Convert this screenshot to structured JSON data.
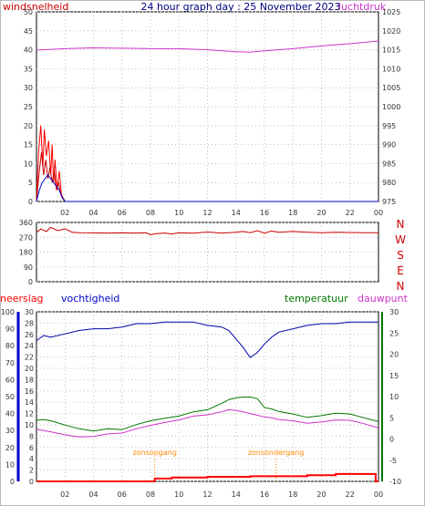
{
  "colors": {
    "wind": "#cc0000",
    "gust": "#ff0000",
    "wind_avg": "#0000cc",
    "pressure": "#cc33cc",
    "direction": "#cc0000",
    "humidity": "#0000aa",
    "temperature": "#007700",
    "dewpoint": "#cc33cc",
    "rain": "#ff0000",
    "sun_marker": "#ff8800",
    "grid": "#bfbfbf",
    "axis_blue": "#0000cc",
    "axis_green": "#007700"
  },
  "chart_data": [
    {
      "type": "line",
      "title": "24 hour graph day : 25 November 2023",
      "left_axis_label": "windsnelheid",
      "right_axis_label": "luchtdruk",
      "x_ticks": [
        "02",
        "04",
        "06",
        "08",
        "10",
        "12",
        "14",
        "16",
        "18",
        "20",
        "22",
        "00"
      ],
      "left_ticks": [
        "50",
        "45",
        "40",
        "35",
        "30",
        "25",
        "20",
        "15",
        "10",
        "5",
        "0"
      ],
      "right_ticks": [
        "1025",
        "1020",
        "1015",
        "1010",
        "1005",
        "1000",
        "995",
        "990",
        "985",
        "980",
        "975"
      ],
      "xlim": [
        0,
        24
      ],
      "left_ylim": [
        0,
        50
      ],
      "right_ylim": [
        975,
        1025
      ],
      "series": [
        {
          "key": "gust",
          "axis": "left",
          "x": [
            0,
            0.15,
            0.3,
            0.45,
            0.55,
            0.7,
            0.85,
            1.0,
            1.1,
            1.2,
            1.3,
            1.45,
            1.6,
            1.75,
            1.85,
            2.0,
            24
          ],
          "y": [
            0,
            13,
            20,
            9,
            19,
            12,
            16,
            7,
            15,
            5,
            11,
            3,
            8,
            2,
            1,
            0,
            0
          ]
        },
        {
          "key": "wind",
          "axis": "left",
          "x": [
            0,
            0.2,
            0.35,
            0.5,
            0.65,
            0.8,
            0.95,
            1.1,
            1.25,
            1.4,
            1.55,
            1.7,
            1.85,
            2.0,
            24
          ],
          "y": [
            0,
            8,
            13,
            7,
            11,
            6,
            9,
            5,
            8,
            3,
            5,
            2,
            1,
            0,
            0
          ]
        },
        {
          "key": "wind_avg",
          "axis": "left",
          "x": [
            0,
            0.2,
            0.4,
            0.6,
            0.8,
            1.0,
            1.2,
            1.4,
            1.6,
            1.8,
            2.0,
            24
          ],
          "y": [
            0,
            3,
            5,
            6,
            7,
            6,
            5,
            4,
            3,
            1,
            0,
            0
          ]
        },
        {
          "key": "pressure",
          "axis": "right",
          "x": [
            0,
            2,
            4,
            6,
            8,
            10,
            12,
            14,
            15,
            16,
            18,
            20,
            22,
            24
          ],
          "y": [
            1014.9,
            1015.3,
            1015.5,
            1015.4,
            1015.3,
            1015.3,
            1015.0,
            1014.5,
            1014.4,
            1014.7,
            1015.3,
            1016.0,
            1016.6,
            1017.3
          ]
        }
      ]
    },
    {
      "type": "line",
      "right_axis_label": [
        "N",
        "W",
        "S",
        "E",
        "N"
      ],
      "y_ticks": [
        "360",
        "270",
        "180",
        "90",
        "0"
      ],
      "xlim": [
        0,
        24
      ],
      "ylim": [
        0,
        360
      ],
      "series": [
        {
          "key": "direction",
          "x": [
            0,
            0.3,
            0.7,
            1.0,
            1.5,
            2.0,
            2.5,
            3,
            4,
            5,
            6,
            7,
            7.7,
            8,
            8.4,
            9,
            9.5,
            10,
            11,
            12,
            13,
            14,
            14.5,
            15,
            15.5,
            16,
            16.5,
            17,
            18,
            19,
            20,
            21,
            22,
            23,
            24
          ],
          "y": [
            300,
            320,
            305,
            330,
            310,
            322,
            300,
            298,
            297,
            296,
            297,
            296,
            297,
            285,
            292,
            296,
            290,
            298,
            295,
            302,
            296,
            300,
            305,
            298,
            310,
            295,
            308,
            300,
            305,
            300,
            298,
            300,
            299,
            298,
            298
          ]
        }
      ]
    },
    {
      "type": "line",
      "axis_labels": [
        "neerslag",
        "vochtigheid",
        "temperatuur",
        "dauwpunt"
      ],
      "x_ticks": [
        "02",
        "04",
        "06",
        "08",
        "10",
        "12",
        "14",
        "16",
        "18",
        "20",
        "22",
        "00"
      ],
      "rain_ticks": [
        "0",
        "2",
        "4",
        "6",
        "8",
        "10",
        "12",
        "14",
        "16",
        "18",
        "20",
        "22",
        "24",
        "26",
        "28",
        "30"
      ],
      "humidity_ticks": [
        "0",
        "10",
        "20",
        "30",
        "40",
        "50",
        "60",
        "70",
        "80",
        "90",
        "100"
      ],
      "temperature_ticks": [
        "-10",
        "-5",
        "0",
        "5",
        "10",
        "15",
        "20",
        "25",
        "30"
      ],
      "annotations": [
        "zonsopgang",
        "zonsondergang"
      ],
      "sunrise_hour": 8.3,
      "sunset_hour": 16.8,
      "xlim": [
        0,
        24
      ],
      "rain_ylim": [
        0,
        30
      ],
      "humidity_ylim": [
        0,
        100
      ],
      "temperature_ylim": [
        -10,
        30
      ],
      "series": [
        {
          "key": "humidity",
          "axis": "humidity",
          "x": [
            0,
            0.5,
            1,
            2,
            3,
            4,
            5,
            6,
            7,
            8,
            9,
            10,
            11,
            12,
            13,
            13.5,
            14,
            14.5,
            15,
            15.5,
            16,
            16.5,
            17,
            18,
            19,
            20,
            21,
            22,
            23,
            24
          ],
          "y": [
            83,
            86,
            85,
            87,
            89,
            90,
            90,
            91,
            93,
            93,
            94,
            94,
            94,
            92,
            91,
            89,
            84,
            79,
            73,
            76,
            81,
            85,
            88,
            90,
            92,
            93,
            93,
            94,
            94,
            94
          ]
        },
        {
          "key": "temperature",
          "axis": "temperature",
          "x": [
            0,
            0.5,
            1,
            2,
            3,
            4,
            5,
            6,
            7,
            8,
            9,
            10,
            11,
            12,
            13,
            13.5,
            14,
            14.5,
            15,
            15.5,
            16,
            16.5,
            17,
            18,
            19,
            20,
            21,
            22,
            23,
            24
          ],
          "y": [
            4.4,
            4.6,
            4.3,
            3.3,
            2.4,
            1.9,
            2.4,
            2.2,
            3.4,
            4.3,
            4.9,
            5.4,
            6.4,
            6.9,
            8.4,
            9.3,
            9.7,
            9.9,
            9.9,
            9.5,
            7.4,
            7.1,
            6.5,
            5.9,
            5.1,
            5.5,
            6.1,
            5.9,
            5.0,
            4.1
          ]
        },
        {
          "key": "dewpoint",
          "axis": "temperature",
          "x": [
            0,
            0.5,
            1,
            2,
            3,
            4,
            5,
            6,
            7,
            8,
            9,
            10,
            11,
            12,
            13,
            13.5,
            14,
            14.5,
            15,
            15.5,
            16,
            16.5,
            17,
            18,
            19,
            20,
            21,
            22,
            23,
            24
          ],
          "y": [
            2.3,
            2.0,
            1.7,
            1.0,
            0.5,
            0.6,
            1.2,
            1.4,
            2.4,
            3.2,
            3.9,
            4.5,
            5.4,
            5.7,
            6.4,
            6.9,
            6.7,
            6.4,
            6.0,
            5.6,
            5.2,
            5.0,
            4.6,
            4.3,
            3.7,
            4.0,
            4.5,
            4.4,
            3.6,
            2.6
          ]
        },
        {
          "key": "rain",
          "axis": "rain",
          "x": [
            0,
            8.3,
            8.3,
            9.5,
            9.5,
            12,
            12,
            15,
            15,
            19,
            19,
            21,
            21,
            23.8,
            23.8,
            24
          ],
          "y": [
            0,
            0,
            0.5,
            0.5,
            0.7,
            0.7,
            0.8,
            0.8,
            0.9,
            0.9,
            1.1,
            1.1,
            1.3,
            1.3,
            0,
            0
          ]
        }
      ]
    }
  ]
}
